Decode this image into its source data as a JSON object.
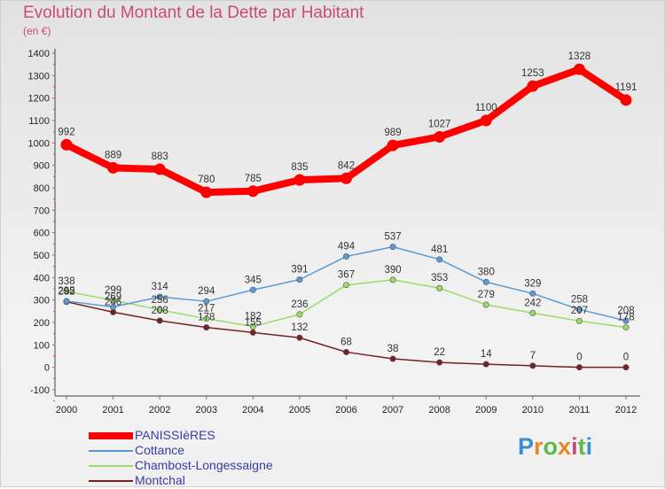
{
  "header": {
    "title": "Evolution du Montant de la Dette par Habitant",
    "subtitle": "(en €)"
  },
  "logo": {
    "text": "Proxiti",
    "colors": [
      "#3a8fd0",
      "#e6892a",
      "#5fb84a",
      "#e6892a",
      "#c94a7c",
      "#5fb84a",
      "#3a8fd0"
    ]
  },
  "chart_data": {
    "type": "line",
    "title": "Evolution du Montant de la Dette par Habitant",
    "subtitle": "(en €)",
    "x": [
      "2000",
      "2001",
      "2002",
      "2003",
      "2004",
      "2005",
      "2006",
      "2007",
      "2008",
      "2009",
      "2010",
      "2011",
      "2012"
    ],
    "ylim": [
      -100,
      1400
    ],
    "yticks": [
      -100,
      0,
      100,
      200,
      300,
      400,
      500,
      600,
      700,
      800,
      900,
      1000,
      1100,
      1200,
      1300,
      1400
    ],
    "grid": false,
    "legend_position": "bottom-left",
    "series": [
      {
        "name": "PANISSIèRES",
        "color": "#ff0000",
        "values": [
          992,
          889,
          883,
          780,
          785,
          835,
          842,
          989,
          1027,
          1100,
          1253,
          1328,
          1191
        ]
      },
      {
        "name": "Cottance",
        "color": "#5b9bd5",
        "values": [
          295,
          269,
          314,
          294,
          345,
          391,
          494,
          537,
          481,
          380,
          329,
          258,
          208
        ]
      },
      {
        "name": "Chambost-Longessaigne",
        "color": "#99dd66",
        "values": [
          338,
          299,
          256,
          217,
          182,
          236,
          367,
          390,
          353,
          279,
          242,
          207,
          178
        ]
      },
      {
        "name": "Montchal",
        "color": "#7a1f1f",
        "values": [
          292,
          246,
          208,
          178,
          155,
          132,
          68,
          38,
          22,
          14,
          7,
          0,
          0
        ]
      }
    ],
    "data_labels": [
      [
        "992",
        "889",
        "883",
        "780",
        "785",
        "835",
        "842",
        "989",
        "1027",
        "1100",
        "1253",
        "1328",
        "1191"
      ],
      [
        "295",
        "269",
        "314",
        "294",
        "345",
        "391",
        "494",
        "537",
        "481",
        "380",
        "329",
        "258",
        "208"
      ],
      [
        "338",
        "299",
        "256",
        "217",
        "182",
        "236",
        "367",
        "390",
        "353",
        "279",
        "242",
        "207",
        "178"
      ],
      [
        "292",
        "246",
        "208",
        "178",
        "155",
        "132",
        "68",
        "38",
        "22",
        "14",
        "7",
        "0",
        "0"
      ]
    ]
  }
}
